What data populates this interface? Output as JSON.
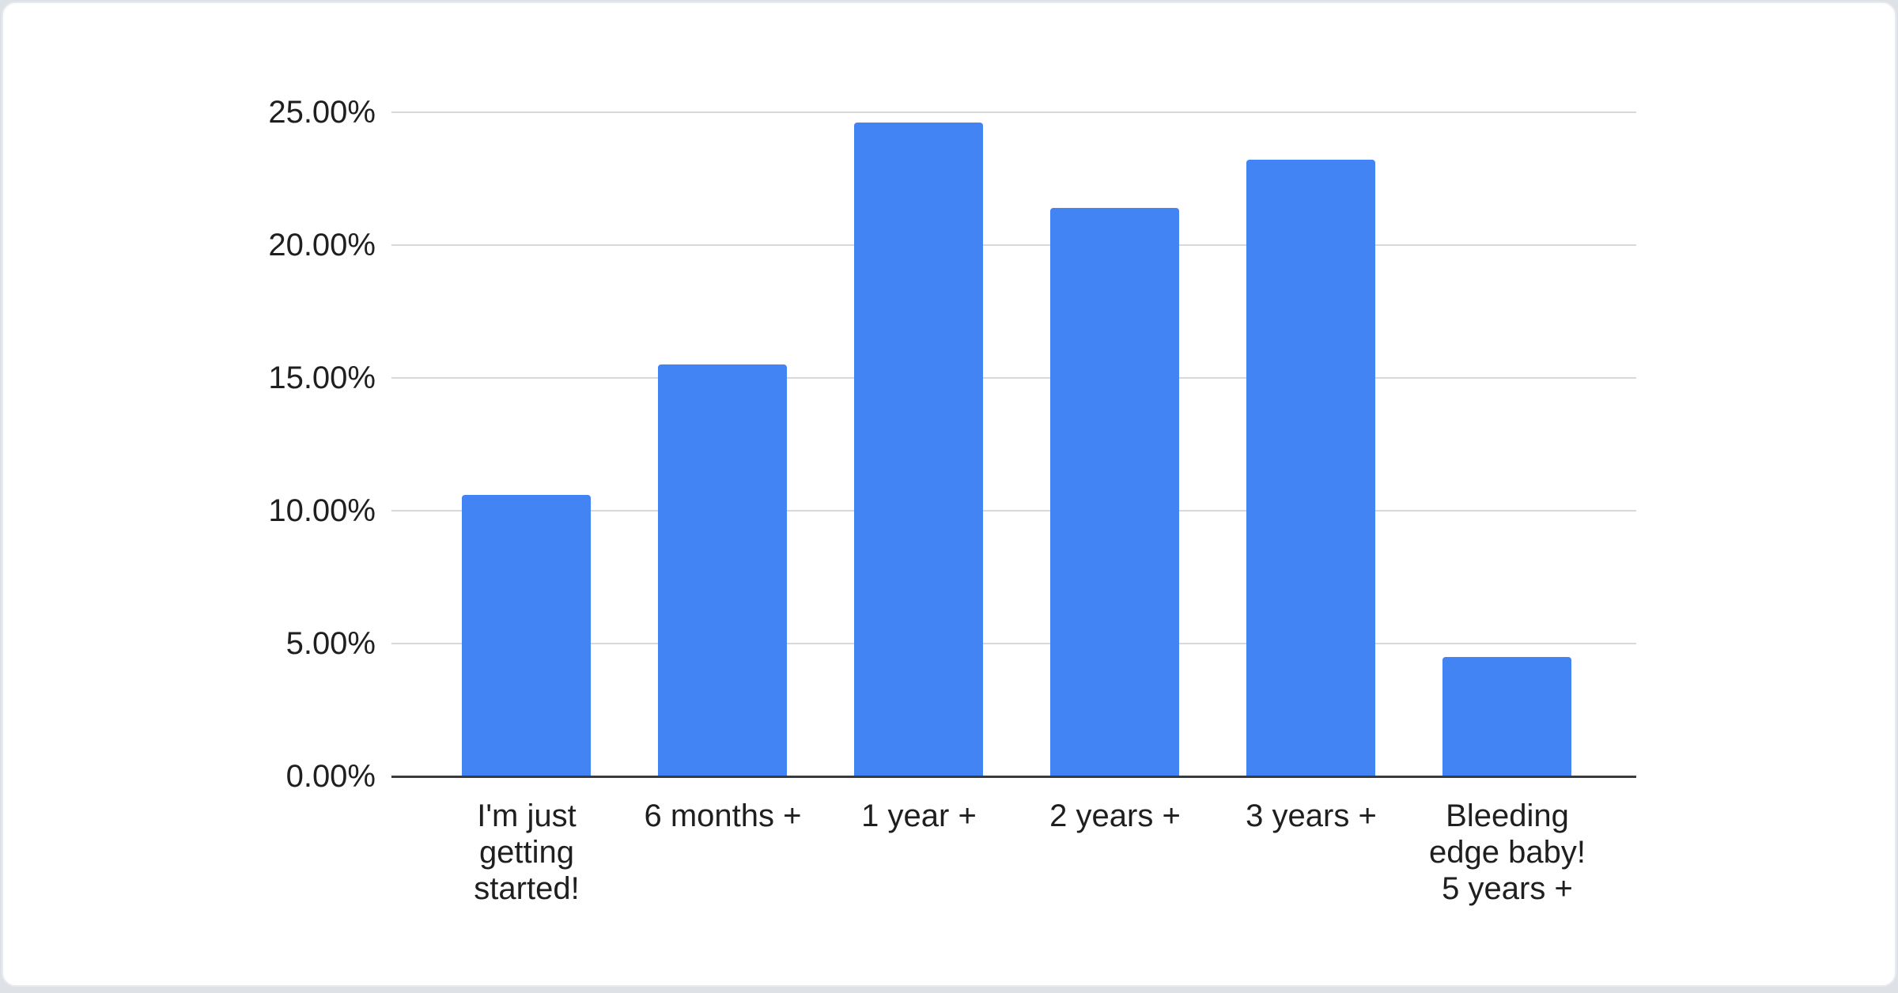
{
  "card": {
    "background": "#ffffff"
  },
  "chart_data": {
    "type": "bar",
    "title": "",
    "xlabel": "",
    "ylabel": "",
    "categories": [
      "I'm just getting started!",
      "6 months +",
      "1 year +",
      "2 years +",
      "3 years +",
      "Bleeding edge baby! 5 years +"
    ],
    "category_lines": [
      [
        "I'm just",
        "getting",
        "started!"
      ],
      [
        "6 months +"
      ],
      [
        "1 year +"
      ],
      [
        "2 years +"
      ],
      [
        "3 years +"
      ],
      [
        "Bleeding",
        "edge baby!",
        "5 years +"
      ]
    ],
    "values": [
      10.6,
      15.5,
      24.6,
      21.4,
      23.2,
      4.5
    ],
    "unit": "%",
    "ylim": [
      0,
      25
    ],
    "yticks": [
      0,
      5,
      10,
      15,
      20,
      25
    ],
    "ytick_labels": [
      "0.00%",
      "5.00%",
      "10.00%",
      "15.00%",
      "20.00%",
      "25.00%"
    ],
    "grid": true,
    "legend": "none",
    "bar_color": "#4384f4",
    "gridline_color": "#d9d9d9",
    "axis_line_color": "#3b3b3b",
    "label_color": "#1f1f1f"
  }
}
